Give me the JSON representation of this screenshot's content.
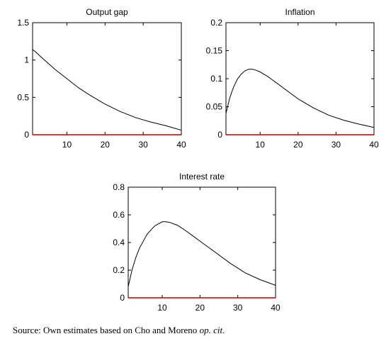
{
  "chart_data": [
    {
      "type": "line",
      "title": "Output gap",
      "xlim": [
        1,
        40
      ],
      "ylim": [
        0,
        1.5
      ],
      "xticks": [
        "10",
        "20",
        "30",
        "40"
      ],
      "yticks": [
        "0",
        "0.5",
        "1",
        "1.5"
      ],
      "zero_line_color": "#c00000",
      "series": [
        {
          "x": [
            1,
            2,
            3,
            5,
            7,
            10,
            13,
            16,
            20,
            24,
            28,
            32,
            36,
            38,
            40
          ],
          "values": [
            1.14,
            1.1,
            1.05,
            0.96,
            0.87,
            0.75,
            0.63,
            0.53,
            0.41,
            0.31,
            0.23,
            0.17,
            0.12,
            0.09,
            0.06
          ]
        }
      ]
    },
    {
      "type": "line",
      "title": "Inflation",
      "xlim": [
        1,
        40
      ],
      "ylim": [
        0,
        0.2
      ],
      "xticks": [
        "10",
        "20",
        "30",
        "40"
      ],
      "yticks": [
        "0",
        "0.05",
        "0.1",
        "0.15",
        "0.2"
      ],
      "zero_line_color": "#c00000",
      "series": [
        {
          "x": [
            1,
            2,
            3,
            4,
            5,
            6,
            7,
            8,
            9,
            10,
            12,
            14,
            16,
            18,
            20,
            24,
            28,
            32,
            36,
            40
          ],
          "values": [
            0.038,
            0.066,
            0.085,
            0.099,
            0.108,
            0.114,
            0.117,
            0.117,
            0.115,
            0.112,
            0.104,
            0.094,
            0.084,
            0.074,
            0.064,
            0.048,
            0.035,
            0.026,
            0.019,
            0.013
          ]
        }
      ]
    },
    {
      "type": "line",
      "title": "Interest rate",
      "xlim": [
        1,
        40
      ],
      "ylim": [
        0,
        0.8
      ],
      "xticks": [
        "10",
        "20",
        "30",
        "40"
      ],
      "yticks": [
        "0",
        "0.2",
        "0.4",
        "0.6",
        "0.8"
      ],
      "zero_line_color": "#c00000",
      "series": [
        {
          "x": [
            1,
            2,
            3,
            4,
            6,
            8,
            10,
            11,
            12,
            14,
            16,
            18,
            20,
            24,
            28,
            32,
            36,
            40
          ],
          "values": [
            0.08,
            0.2,
            0.29,
            0.36,
            0.46,
            0.52,
            0.55,
            0.55,
            0.545,
            0.525,
            0.49,
            0.45,
            0.41,
            0.33,
            0.25,
            0.18,
            0.13,
            0.09
          ]
        }
      ]
    }
  ],
  "source": {
    "text": "Source: Own estimates based on Cho and Moreno ",
    "italic": "op. cit",
    "end": "."
  }
}
